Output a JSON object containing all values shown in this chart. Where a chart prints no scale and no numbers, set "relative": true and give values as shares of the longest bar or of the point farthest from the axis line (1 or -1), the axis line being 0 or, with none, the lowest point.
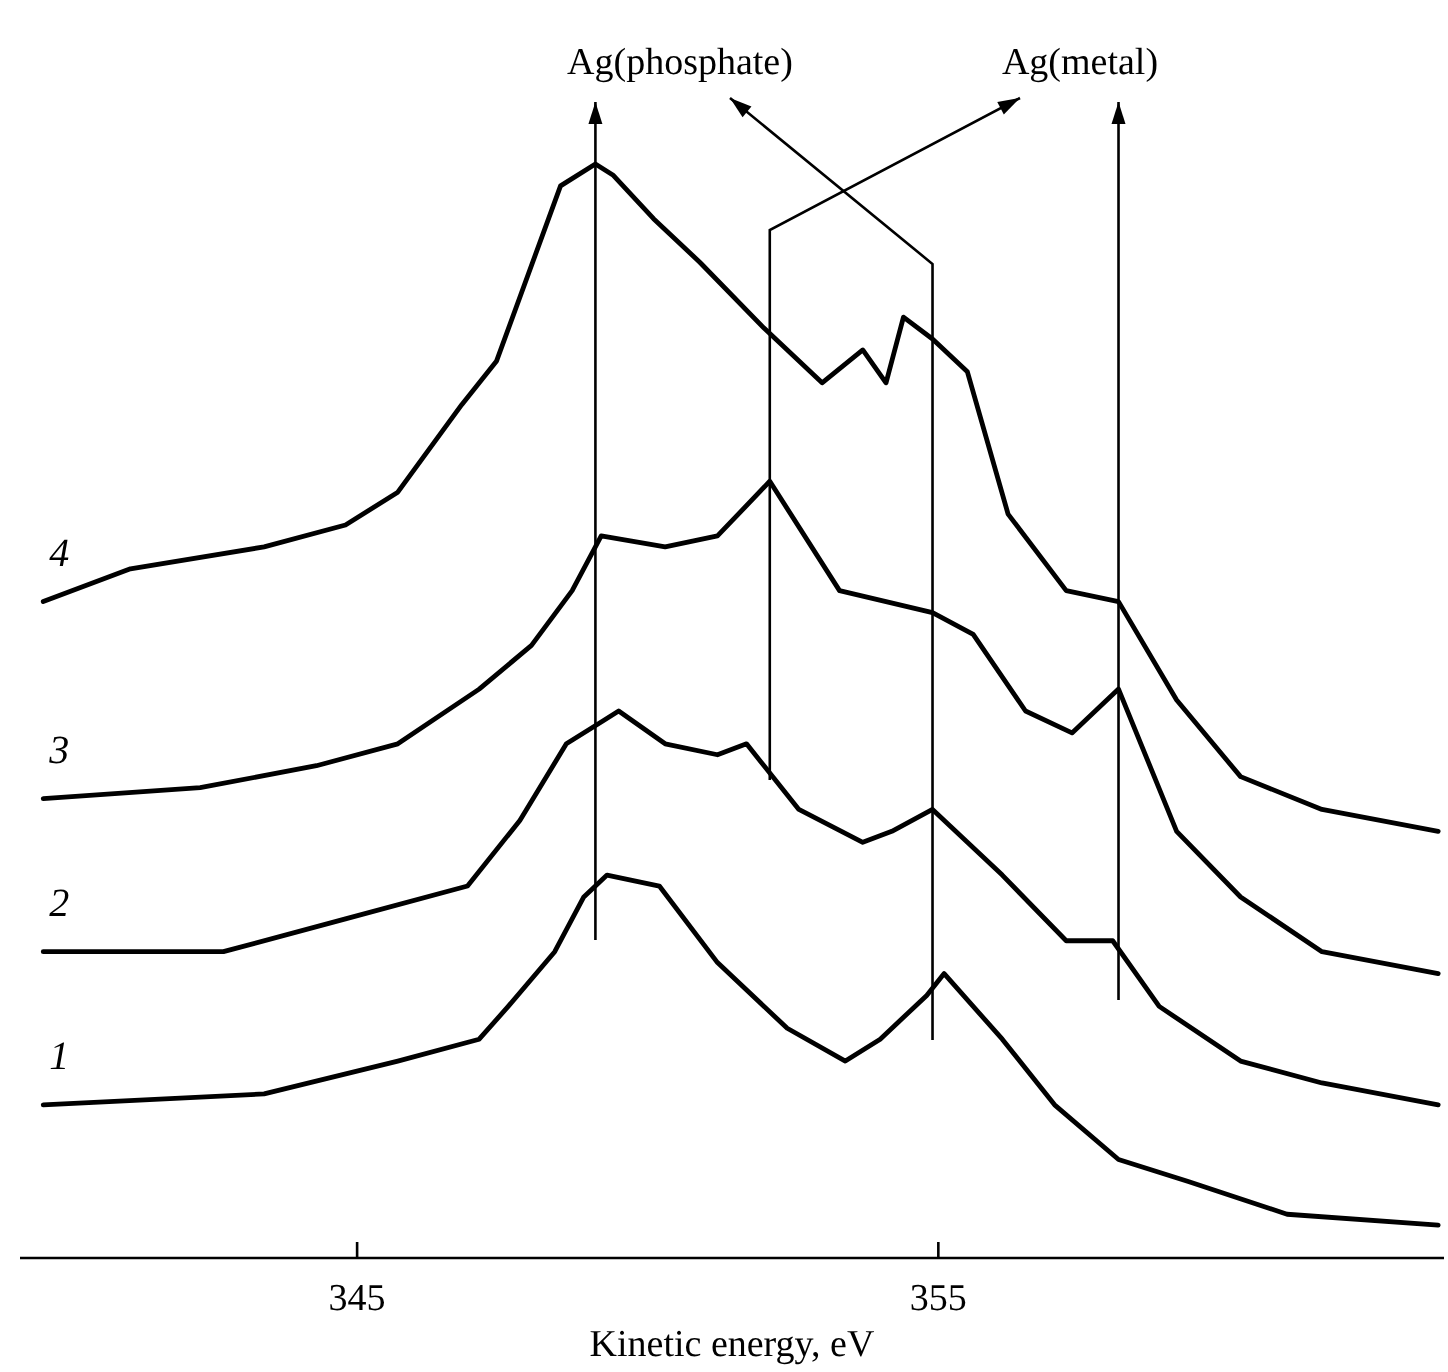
{
  "chart_data": {
    "type": "line",
    "relative": true,
    "xlabel": "Kinetic energy, eV",
    "xlim": [
      339.2,
      363.7
    ],
    "xticks": [
      345,
      355
    ],
    "marker": "none",
    "line_style": "solid",
    "annotations": [
      "Ag(phosphate)",
      "Ag(metal)"
    ],
    "ref_lines": [
      {
        "axis": "x",
        "value": 349.1,
        "color": "#000000"
      },
      {
        "axis": "x",
        "value": 352.1,
        "color": "#000000"
      },
      {
        "axis": "x",
        "value": 354.9,
        "color": "#000000"
      },
      {
        "axis": "x",
        "value": 358.1,
        "color": "#000000"
      }
    ],
    "series": [
      {
        "name": "1",
        "color": "#000000",
        "x": [
          339.6,
          343.4,
          345.7,
          347.1,
          347.6,
          348.4,
          348.9,
          349.3,
          350.2,
          351.2,
          352.4,
          353.4,
          354.0,
          354.8,
          355.1,
          356.1,
          357.0,
          358.1,
          359.3,
          361.0,
          363.6
        ],
        "values": [
          0.14,
          0.15,
          0.18,
          0.2,
          0.23,
          0.28,
          0.33,
          0.35,
          0.34,
          0.27,
          0.21,
          0.18,
          0.2,
          0.24,
          0.26,
          0.2,
          0.14,
          0.09,
          0.07,
          0.04,
          0.03
        ]
      },
      {
        "name": "2",
        "color": "#000000",
        "x": [
          339.6,
          342.7,
          344.8,
          346.9,
          347.8,
          348.6,
          349.2,
          349.5,
          350.3,
          351.2,
          351.7,
          352.6,
          353.7,
          354.2,
          354.9,
          356.1,
          357.2,
          358.0,
          358.8,
          360.2,
          361.6,
          363.6
        ],
        "values": [
          0.28,
          0.28,
          0.31,
          0.34,
          0.4,
          0.47,
          0.49,
          0.5,
          0.47,
          0.46,
          0.47,
          0.41,
          0.38,
          0.39,
          0.41,
          0.35,
          0.29,
          0.29,
          0.23,
          0.18,
          0.16,
          0.14
        ]
      },
      {
        "name": "3",
        "color": "#000000",
        "x": [
          339.6,
          342.3,
          344.3,
          345.7,
          347.1,
          348.0,
          348.7,
          349.2,
          350.3,
          351.2,
          352.1,
          353.3,
          354.9,
          355.6,
          356.5,
          357.3,
          358.1,
          359.1,
          360.2,
          361.6,
          363.6
        ],
        "values": [
          0.42,
          0.43,
          0.45,
          0.47,
          0.52,
          0.56,
          0.61,
          0.66,
          0.65,
          0.66,
          0.71,
          0.61,
          0.59,
          0.57,
          0.5,
          0.48,
          0.52,
          0.39,
          0.33,
          0.28,
          0.26
        ]
      },
      {
        "name": "4",
        "color": "#000000",
        "x": [
          339.6,
          341.1,
          343.4,
          344.8,
          345.7,
          346.8,
          347.4,
          348.5,
          349.1,
          349.4,
          350.1,
          350.9,
          352.0,
          353.0,
          353.7,
          354.1,
          354.4,
          354.9,
          355.5,
          356.2,
          357.2,
          358.1,
          359.1,
          360.2,
          361.6,
          363.6
        ],
        "values": [
          0.6,
          0.63,
          0.65,
          0.67,
          0.7,
          0.78,
          0.82,
          0.98,
          1,
          0.99,
          0.95,
          0.91,
          0.85,
          0.8,
          0.83,
          0.8,
          0.86,
          0.84,
          0.81,
          0.68,
          0.61,
          0.6,
          0.51,
          0.44,
          0.41,
          0.39
        ]
      }
    ]
  }
}
